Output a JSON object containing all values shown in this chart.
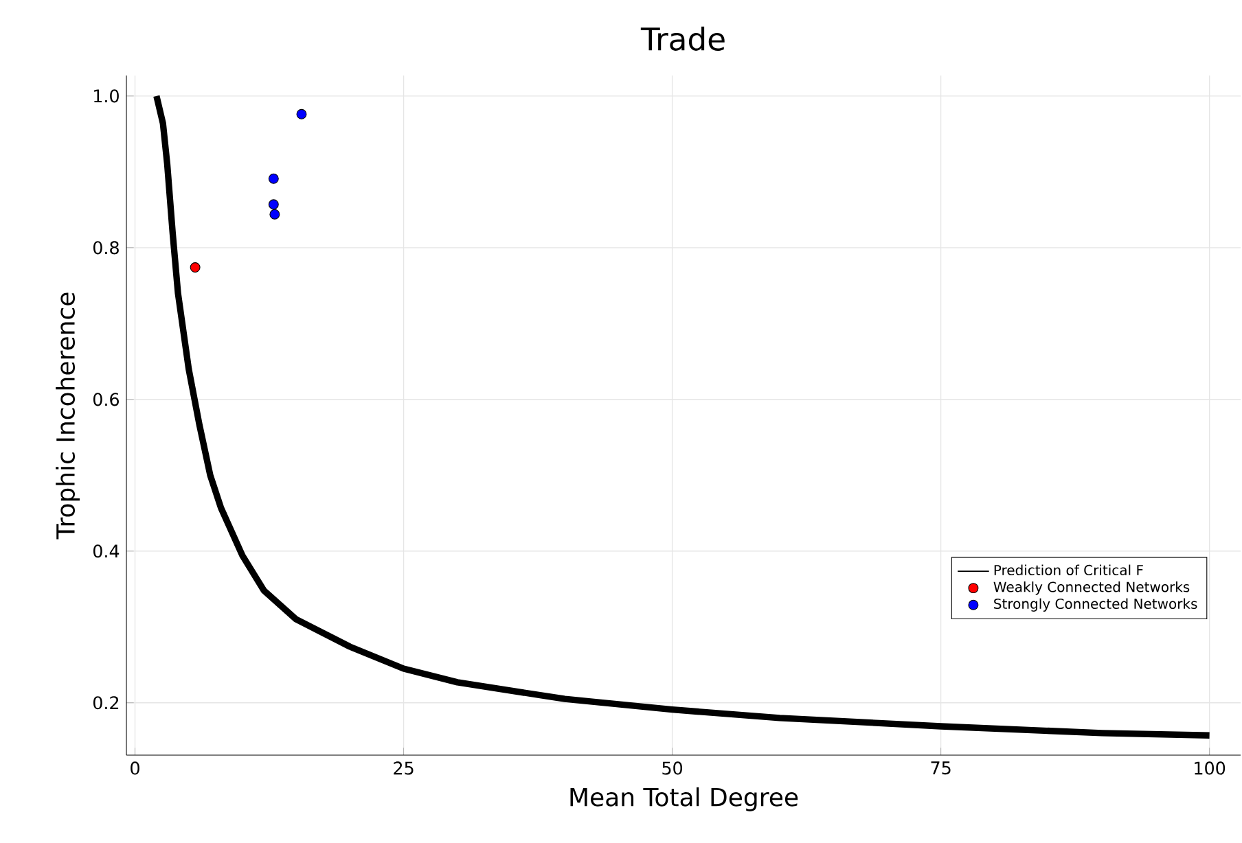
{
  "chart_data": {
    "type": "scatter",
    "title": "Trade",
    "xlabel": "Mean Total Degree",
    "ylabel": "Trophic Incoherence",
    "xlim": [
      -0.8,
      102.9
    ],
    "ylim": [
      0.131,
      1.027
    ],
    "xticks": [
      0,
      25,
      50,
      75,
      100
    ],
    "yticks": [
      0.2,
      0.4,
      0.6,
      {
        "value": 0.8,
        "label": "0.8"
      },
      {
        "value": 1,
        "label": "1.0"
      }
    ],
    "grid": true,
    "legend": "bottom right",
    "series": [
      {
        "name": "Prediction of Critical F",
        "type": "line",
        "line_style": "solid",
        "color": "#000000",
        "x": [
          2,
          2.6,
          3,
          3.5,
          4,
          5,
          6,
          7,
          8,
          10,
          12,
          15,
          20,
          25,
          30,
          40,
          50,
          60,
          75,
          90,
          100
        ],
        "values": [
          1.0,
          0.964,
          0.91,
          0.82,
          0.74,
          0.64,
          0.566,
          0.5,
          0.457,
          0.394,
          0.348,
          0.31,
          0.274,
          0.245,
          0.227,
          0.205,
          0.191,
          0.18,
          0.169,
          0.16,
          0.157
        ]
      },
      {
        "name": "Weakly Connected Networks",
        "marker": "circle",
        "color": "#ff0000",
        "x": [
          5.6
        ],
        "values": [
          0.774
        ]
      },
      {
        "name": "Strongly Connected Networks",
        "marker": "circle",
        "color": "#0000ff",
        "x": [
          15.5,
          12.9,
          12.9,
          13.0
        ],
        "values": [
          0.976,
          0.891,
          0.857,
          0.844
        ]
      }
    ]
  }
}
